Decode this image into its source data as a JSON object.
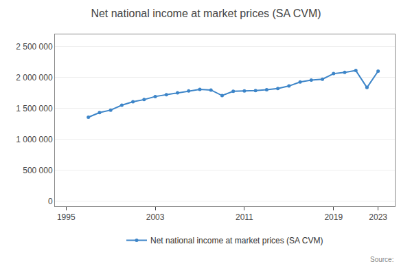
{
  "chart_data": {
    "type": "line",
    "title": "Net national income at market prices (SA CVM)",
    "annotations": [
      "Source:"
    ],
    "x": [
      1997,
      1998,
      1999,
      2000,
      2001,
      2002,
      2003,
      2004,
      2005,
      2006,
      2007,
      2008,
      2009,
      2010,
      2011,
      2012,
      2013,
      2014,
      2015,
      2016,
      2017,
      2018,
      2019,
      2020,
      2021,
      2022,
      2023
    ],
    "series": [
      {
        "name": "Net national income at market prices (SA CVM)",
        "color": "#3d85c8",
        "marker": "circle",
        "line_style": "solid",
        "values": [
          1360000,
          1435000,
          1475000,
          1555000,
          1610000,
          1645000,
          1695000,
          1725000,
          1755000,
          1785000,
          1810000,
          1800000,
          1710000,
          1780000,
          1785000,
          1790000,
          1805000,
          1825000,
          1865000,
          1930000,
          1960000,
          1975000,
          2065000,
          2085000,
          2115000,
          1840000,
          2105000
        ]
      }
    ],
    "xlim": [
      1994.0,
      2024.5
    ],
    "xticks": [
      1995,
      2003,
      2011,
      2019,
      2023
    ],
    "ylim": [
      -80000,
      2700000
    ],
    "yticks": [
      0,
      {
        "value": 500000,
        "label": "500 000"
      },
      {
        "value": 1000000,
        "label": "1 000 000"
      },
      {
        "value": 1500000,
        "label": "1 500 000"
      },
      {
        "value": 2000000,
        "label": "2 000 000"
      },
      {
        "value": 2500000,
        "label": "2 500 000"
      }
    ],
    "grid": "y",
    "legend": "bottom"
  }
}
